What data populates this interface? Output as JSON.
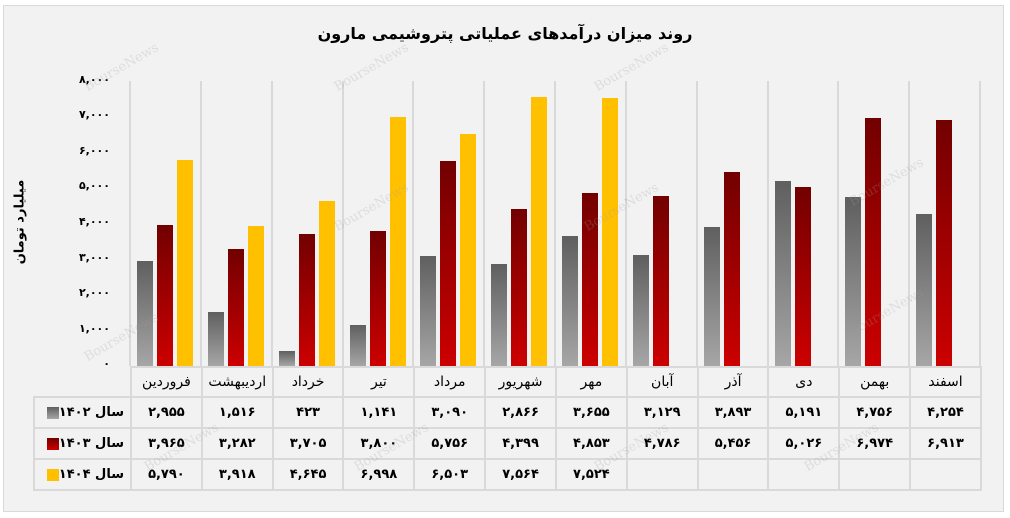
{
  "title": "روند میزان درآمدهای عملیاتی پتروشیمی مارون",
  "y_axis": {
    "label": "میلیارد تومان",
    "ticks": [
      "۸,۰۰۰",
      "۷,۰۰۰",
      "۶,۰۰۰",
      "۵,۰۰۰",
      "۴,۰۰۰",
      "۳,۰۰۰",
      "۲,۰۰۰",
      "۱,۰۰۰",
      "۰"
    ]
  },
  "watermark": "BourseNews",
  "colors": {
    "1402": "#808080",
    "1403": "#a00000",
    "1404": "#ffc000"
  },
  "table": {
    "months": [
      "فروردین",
      "اردیبهشت",
      "خرداد",
      "تیر",
      "مرداد",
      "شهریور",
      "مهر",
      "آبان",
      "آذر",
      "دی",
      "بهمن",
      "اسفند"
    ],
    "rows": [
      {
        "label": "سال ۱۴۰۲",
        "values": [
          "۲,۹۵۵",
          "۱,۵۱۶",
          "۴۲۳",
          "۱,۱۴۱",
          "۳,۰۹۰",
          "۲,۸۶۶",
          "۳,۶۵۵",
          "۳,۱۲۹",
          "۳,۸۹۳",
          "۵,۱۹۱",
          "۴,۷۵۶",
          "۴,۲۵۴"
        ]
      },
      {
        "label": "سال ۱۴۰۳",
        "values": [
          "۳,۹۶۵",
          "۳,۲۸۲",
          "۳,۷۰۵",
          "۳,۸۰۰",
          "۵,۷۵۶",
          "۴,۳۹۹",
          "۴,۸۵۳",
          "۴,۷۸۶",
          "۵,۴۵۶",
          "۵,۰۲۶",
          "۶,۹۷۴",
          "۶,۹۱۳"
        ]
      },
      {
        "label": "سال ۱۴۰۴",
        "values": [
          "۵,۷۹۰",
          "۳,۹۱۸",
          "۴,۶۴۵",
          "۶,۹۹۸",
          "۶,۵۰۳",
          "۷,۵۶۴",
          "۷,۵۲۴",
          "",
          "",
          "",
          "",
          ""
        ]
      }
    ]
  },
  "chart_data": {
    "type": "bar",
    "title": "روند میزان درآمدهای عملیاتی پتروشیمی مارون",
    "xlabel": "",
    "ylabel": "میلیارد تومان",
    "ylim": [
      0,
      8000
    ],
    "grid": false,
    "legend_position": "data-table-left",
    "categories": [
      "فروردین",
      "اردیبهشت",
      "خرداد",
      "تیر",
      "مرداد",
      "شهریور",
      "مهر",
      "آبان",
      "آذر",
      "دی",
      "بهمن",
      "اسفند"
    ],
    "series": [
      {
        "name": "سال ۱۴۰۲",
        "values": [
          2955,
          1516,
          423,
          1141,
          3090,
          2866,
          3655,
          3129,
          3893,
          5191,
          4756,
          4254
        ]
      },
      {
        "name": "سال ۱۴۰۳",
        "values": [
          3965,
          3282,
          3705,
          3800,
          5756,
          4399,
          4853,
          4786,
          5456,
          5026,
          6974,
          6913
        ]
      },
      {
        "name": "سال ۱۴۰۴",
        "values": [
          5790,
          3918,
          4645,
          6998,
          6503,
          7564,
          7524,
          null,
          null,
          null,
          null,
          null
        ]
      }
    ]
  }
}
